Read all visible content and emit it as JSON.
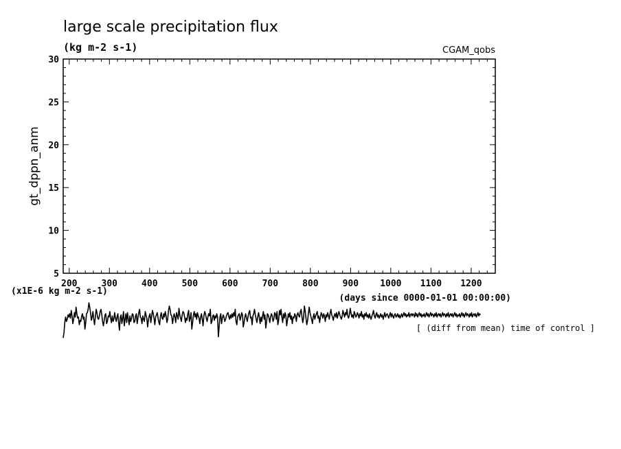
{
  "chart_data": {
    "type": "line",
    "title": "large scale precipitation flux",
    "units": "(kg m-2 s-1)",
    "dataset": "CGAM_qobs",
    "ylabel": "gt_dppn_anm",
    "xlabel": "(days since 0000-01-01 00:00:00)",
    "scale_note": "(x1E-6 kg m-2 s-1)",
    "footnote": "[ (diff from mean) time of control ]",
    "xlim": [
      185,
      1260
    ],
    "ylim": [
      5,
      30
    ],
    "x_ticks": [
      "200",
      "300",
      "400",
      "500",
      "600",
      "700",
      "800",
      "900",
      "1000",
      "1100",
      "1200"
    ],
    "x_tick_values": [
      200,
      300,
      400,
      500,
      600,
      700,
      800,
      900,
      1000,
      1100,
      1200
    ],
    "y_ticks": [
      "5",
      "10",
      "15",
      "20",
      "25",
      "30"
    ],
    "y_tick_values": [
      5,
      10,
      15,
      20,
      25,
      30
    ],
    "series": [
      {
        "x_start": 185,
        "x_step": 2,
        "values": [
          -1.7,
          -1.2,
          -0.3,
          0.2,
          -0.2,
          0.0,
          0.4,
          0.2,
          0.5,
          0.1,
          0.8,
          0.3,
          -0.4,
          0.0,
          0.6,
          0.2,
          1.1,
          0.5,
          0.1,
          0.2,
          -0.5,
          -0.1,
          -0.2,
          0.3,
          0.5,
          0.0,
          0.2,
          -0.9,
          -0.3,
          0.5,
          0.6,
          0.9,
          1.5,
          1.1,
          0.6,
          -0.1,
          0.2,
          0.7,
          0.0,
          -0.5,
          0.2,
          0.9,
          0.6,
          0.1,
          0.0,
          0.3,
          0.7,
          0.9,
          0.4,
          -0.2,
          -0.6,
          -0.1,
          0.4,
          0.5,
          -0.4,
          -0.2,
          0.3,
          0.2,
          0.7,
          0.1,
          -0.3,
          0.3,
          -0.2,
          0.0,
          0.6,
          0.1,
          -0.2,
          0.2,
          0.5,
          -0.3,
          -1.0,
          0.2,
          0.4,
          -0.4,
          0.1,
          0.7,
          -0.6,
          0.0,
          0.5,
          -0.3,
          0.6,
          0.0,
          -0.5,
          0.3,
          -0.2,
          0.1,
          0.5,
          0.4,
          -0.3,
          -0.2,
          0.3,
          0.5,
          -0.4,
          0.1,
          0.6,
          0.9,
          0.2,
          0.1,
          -0.4,
          0.3,
          0.0,
          -0.2,
          0.7,
          0.4,
          0.1,
          -0.7,
          -0.1,
          0.3,
          0.5,
          -0.3,
          0.2,
          0.8,
          0.5,
          0.1,
          -0.5,
          0.2,
          0.4,
          0.6,
          0.1,
          -0.3,
          -0.5,
          0.3,
          0.6,
          0.1,
          0.0,
          0.5,
          0.2,
          0.7,
          0.3,
          -0.3,
          0.0,
          0.8,
          1.2,
          0.9,
          0.4,
          0.3,
          -0.4,
          0.1,
          0.5,
          0.2,
          -0.3,
          0.6,
          0.3,
          0.0,
          1.0,
          0.4,
          0.1,
          -0.2,
          0.4,
          0.7,
          0.6,
          0.2,
          -0.3,
          0.1,
          -0.1,
          0.5,
          0.8,
          -0.2,
          0.1,
          0.6,
          -0.9,
          -0.3,
          0.4,
          0.7,
          0.2,
          0.5,
          0.0,
          0.6,
          0.3,
          0.1,
          -0.4,
          0.2,
          0.5,
          0.0,
          -0.6,
          0.3,
          0.7,
          0.5,
          0.1,
          -0.2,
          0.2,
          0.5,
          0.3,
          0.9,
          -0.4,
          -0.2,
          0.3,
          0.4,
          -0.1,
          0.3,
          0.1,
          0.5,
          0.2,
          -1.6,
          -0.7,
          0.2,
          0.5,
          -0.4,
          0.1,
          0.4,
          0.2,
          -0.2,
          0.0,
          0.3,
          0.5,
          0.6,
          0.2,
          0.0,
          0.4,
          0.1,
          0.5,
          0.2,
          0.6,
          0.3,
          0.9,
          -0.2,
          -0.5,
          0.2,
          0.4,
          0.5,
          -0.1,
          0.2,
          0.6,
          0.4,
          -0.7,
          -0.3,
          0.2,
          0.5,
          0.1,
          -0.2,
          0.3,
          0.6,
          0.8,
          0.1,
          0.2,
          -0.5,
          0.3,
          0.5,
          0.9,
          0.4,
          0.0,
          -0.3,
          0.2,
          0.6,
          0.2,
          -0.4,
          0.2,
          -0.2,
          0.3,
          0.7,
          0.0,
          0.4,
          -0.8,
          -0.2,
          0.5,
          0.4,
          0.1,
          -0.3,
          0.2,
          0.5,
          0.3,
          -0.2,
          0.0,
          0.6,
          0.5,
          0.0,
          0.7,
          -0.5,
          -0.1,
          0.8,
          0.4,
          0.9,
          0.2,
          -0.3,
          0.5,
          0.1,
          0.6,
          0.3,
          -0.6,
          -0.1,
          0.5,
          0.2,
          0.6,
          0.0,
          0.3,
          -0.4,
          0.2,
          0.1,
          0.5,
          0.3,
          -0.2,
          0.4,
          0.6,
          0.3,
          0.2,
          0.7,
          0.9,
          0.2,
          -0.3,
          0.1,
          1.2,
          0.8,
          0.1,
          -0.5,
          -0.1,
          0.5,
          1.1,
          0.6,
          0.3,
          0.0,
          -0.4,
          0.2,
          0.5,
          0.0,
          0.3,
          0.5,
          0.7,
          0.1,
          0.3,
          -0.3,
          0.2,
          0.6,
          0.4,
          0.1,
          0.5,
          0.3,
          -0.2,
          0.4,
          0.2,
          0.6,
          0.3,
          0.0,
          0.5,
          0.9,
          0.4,
          0.2,
          -0.1,
          0.3,
          0.5,
          0.2,
          0.6,
          0.1,
          0.4,
          0.7,
          0.4,
          0.2,
          0.0,
          0.3,
          0.8,
          0.5,
          0.2,
          0.6,
          0.4,
          0.9,
          0.3,
          0.1,
          0.4,
          1.0,
          0.6,
          0.2,
          0.4,
          0.1,
          0.7,
          0.5,
          0.2,
          0.3,
          0.6,
          0.4,
          0.1,
          0.5,
          0.3,
          0.7,
          0.2,
          0.4,
          0.0,
          0.5,
          0.3,
          0.6,
          0.2,
          0.4,
          0.1,
          0.5,
          0.2,
          0.0,
          0.3,
          0.5,
          0.8,
          0.3,
          0.1,
          0.4,
          0.6,
          0.2,
          0.4,
          0.1,
          0.3,
          0.5,
          0.2,
          0.4,
          0.0,
          0.3,
          0.6,
          0.2,
          0.4,
          0.5,
          0.3,
          0.1,
          0.4,
          0.6,
          0.2,
          0.5,
          0.3,
          0.1,
          0.4,
          0.5,
          0.2,
          0.3,
          0.5,
          0.2,
          0.4,
          0.1,
          0.3,
          0.5,
          0.2,
          0.4,
          0.6,
          0.3,
          0.5,
          0.2,
          0.4,
          0.3,
          0.6,
          0.2,
          0.4,
          0.5,
          0.3,
          0.5,
          0.4,
          0.2,
          0.6,
          0.3,
          0.5,
          0.2,
          0.4,
          0.6,
          0.3,
          0.5,
          0.2,
          0.4,
          0.3,
          0.5,
          0.2,
          0.4,
          0.6,
          0.3,
          0.5,
          0.2,
          0.4,
          0.6,
          0.3,
          0.5,
          0.4,
          0.2,
          0.5,
          0.3,
          0.6,
          0.2,
          0.4,
          0.5,
          0.3,
          0.5,
          0.2,
          0.4,
          0.6,
          0.3,
          0.5,
          0.4,
          0.2,
          0.5,
          0.3,
          0.6,
          0.2,
          0.4,
          0.5,
          0.3,
          0.5,
          0.2,
          0.4,
          0.6,
          0.3,
          0.5,
          0.2,
          0.4,
          0.3,
          0.5,
          0.2,
          0.4,
          0.6,
          0.3,
          0.5,
          0.2,
          0.4,
          0.6,
          0.3,
          0.5,
          0.4,
          0.2,
          0.5,
          0.3,
          0.6,
          0.2,
          0.4,
          0.5,
          0.3,
          0.5,
          0.2,
          0.4,
          0.6,
          0.3,
          0.5,
          0.4
        ]
      }
    ]
  }
}
